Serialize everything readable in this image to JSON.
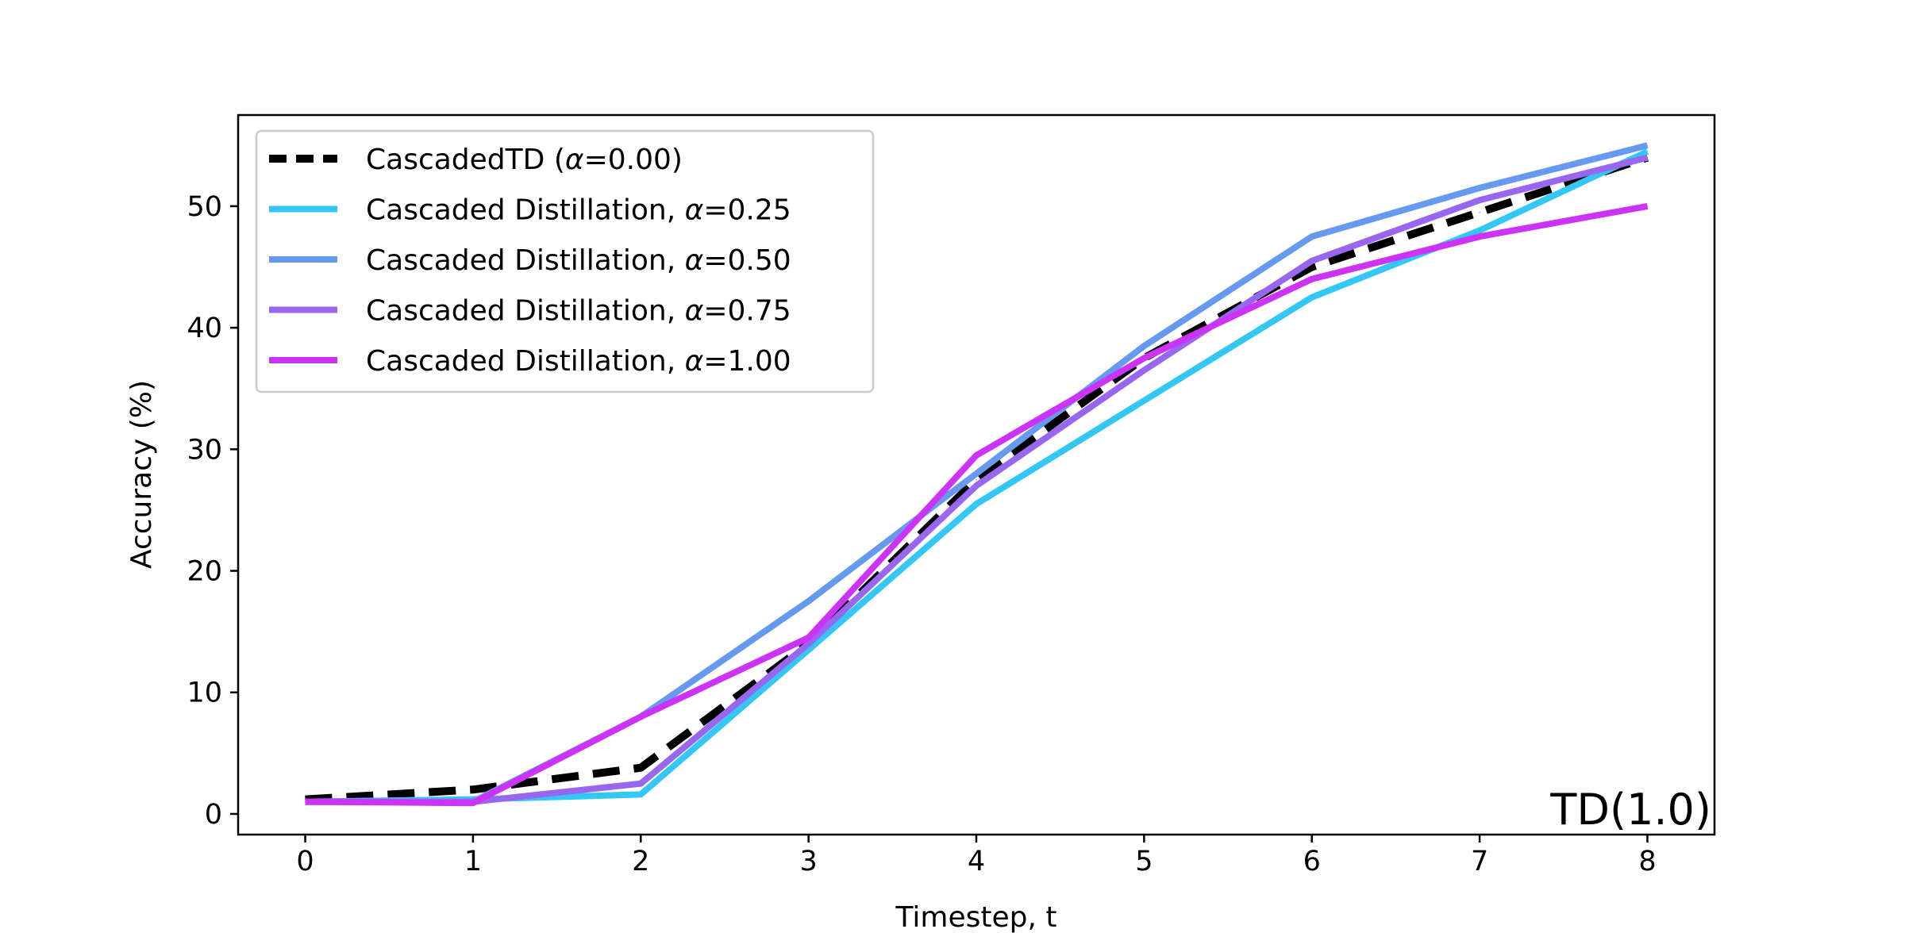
{
  "chart_data": {
    "type": "line",
    "title": "",
    "xlabel": "Timestep, t",
    "ylabel": "Accuracy (%)",
    "xlim": [
      -0.4,
      8.4
    ],
    "ylim": [
      -1.7,
      57.5
    ],
    "xticks": [
      0,
      1,
      2,
      3,
      4,
      5,
      6,
      7,
      8
    ],
    "yticks": [
      0,
      10,
      20,
      30,
      40,
      50
    ],
    "grid": false,
    "legend_position": "top-left",
    "annotation": "TD(1.0)",
    "x": [
      0,
      1,
      2,
      3,
      4,
      5,
      6,
      7,
      8
    ],
    "series": [
      {
        "name": "CascadedTD (α=0.00)",
        "label_prefix": "CascadedTD (",
        "label_alpha": "α",
        "label_suffix": "=0.00)",
        "color": "#000000",
        "dashed": true,
        "values": [
          1.2,
          2.0,
          3.8,
          14.0,
          27.5,
          37.5,
          45.0,
          49.5,
          54.0
        ]
      },
      {
        "name": "Cascaded Distillation, α=0.25",
        "label_prefix": "Cascaded Distillation, ",
        "label_alpha": "α",
        "label_suffix": "=0.25",
        "color": "#33c7f6",
        "dashed": false,
        "values": [
          1.0,
          1.2,
          1.6,
          13.5,
          25.5,
          34.0,
          42.5,
          48.0,
          54.5
        ]
      },
      {
        "name": "Cascaded Distillation, α=0.50",
        "label_prefix": "Cascaded Distillation, ",
        "label_alpha": "α",
        "label_suffix": "=0.50",
        "color": "#6699f0",
        "dashed": false,
        "values": [
          1.0,
          1.0,
          8.0,
          17.5,
          28.0,
          38.5,
          47.5,
          51.5,
          55.0
        ]
      },
      {
        "name": "Cascaded Distillation, α=0.75",
        "label_prefix": "Cascaded Distillation, ",
        "label_alpha": "α",
        "label_suffix": "=0.75",
        "color": "#9966f0",
        "dashed": false,
        "values": [
          1.0,
          1.0,
          2.5,
          14.0,
          27.0,
          36.5,
          45.5,
          50.5,
          54.0
        ]
      },
      {
        "name": "Cascaded Distillation, α=1.00",
        "label_prefix": "Cascaded Distillation, ",
        "label_alpha": "α",
        "label_suffix": "=1.00",
        "color": "#cc33f6",
        "dashed": false,
        "values": [
          1.0,
          0.9,
          8.0,
          14.5,
          29.5,
          37.5,
          44.0,
          47.5,
          50.0
        ]
      }
    ]
  }
}
